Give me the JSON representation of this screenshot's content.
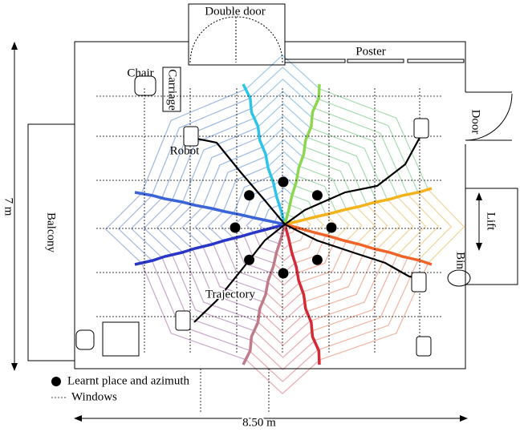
{
  "labels": {
    "double_door": "Double door",
    "poster": "Poster",
    "chair": "Chair",
    "carriage": "Carriage",
    "door": "Door",
    "robot": "Robot",
    "lift": "Lift",
    "balcony": "Balcony",
    "bin": "Bin",
    "trajectory": "Trajectory"
  },
  "legend": {
    "place": "Learnt place and azimuth",
    "windows": "Windows"
  },
  "dimensions": {
    "height": "7 m",
    "width": "8.50 m"
  }
}
